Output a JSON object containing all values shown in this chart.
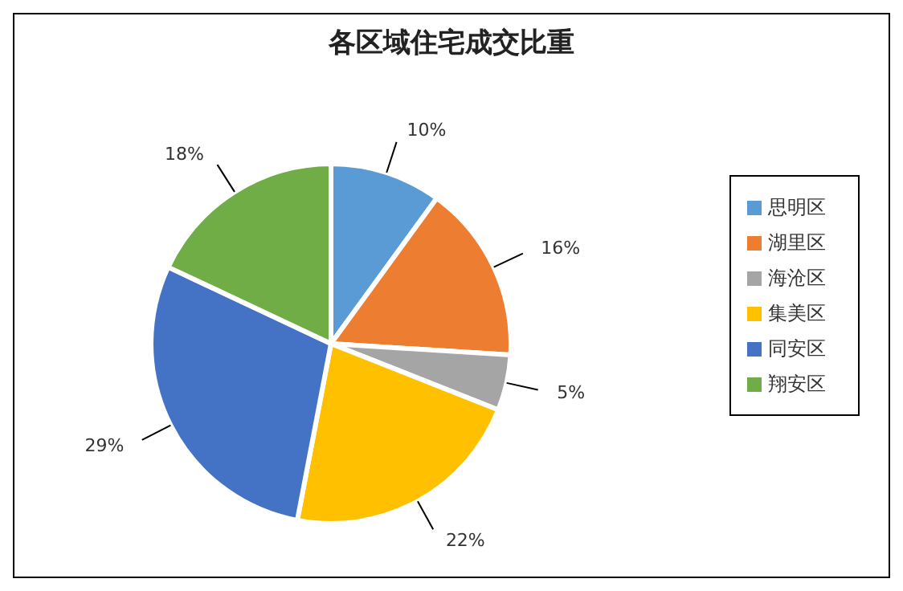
{
  "chart_data": {
    "type": "pie",
    "title": "各区域住宅成交比重",
    "categories": [
      "思明区",
      "湖里区",
      "海沧区",
      "集美区",
      "同安区",
      "翔安区"
    ],
    "values": [
      10,
      16,
      5,
      22,
      29,
      18
    ],
    "value_labels": [
      "10%",
      "16%",
      "5%",
      "22%",
      "29%",
      "18%"
    ],
    "colors": [
      "#5b9bd5",
      "#ed7d31",
      "#a5a5a5",
      "#ffc000",
      "#4472c4",
      "#70ad47"
    ],
    "legend": "right"
  }
}
